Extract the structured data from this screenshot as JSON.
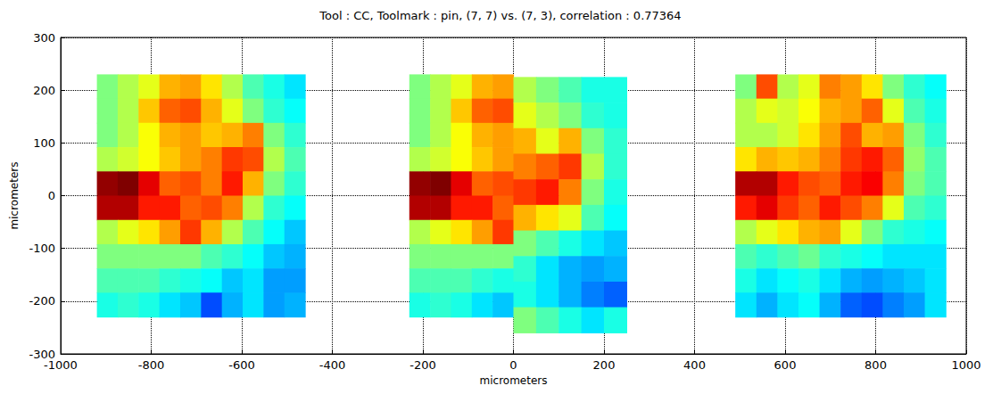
{
  "chart_data": {
    "type": "heatmap",
    "title": "Tool : CC, Toolmark : pin, (7, 7) vs. (7, 3), correlation : 0.77364",
    "x_label": "micrometers",
    "y_label": "micrometers",
    "xlim": [
      -1000,
      1000
    ],
    "xticks": [
      -1000,
      -800,
      -600,
      -400,
      -200,
      0,
      200,
      400,
      600,
      800,
      1000
    ],
    "ylim": [
      -300,
      300
    ],
    "yticks": [
      -300,
      -200,
      -100,
      0,
      100,
      200,
      300
    ],
    "grid": true,
    "color_range": [
      0,
      1
    ],
    "colors": [
      "#00007f",
      "#0000ff",
      "#007fff",
      "#00ffff",
      "#7fff7f",
      "#ffff00",
      "#ff7f00",
      "#ff0000",
      "#7f0000"
    ],
    "images": [
      {
        "x_range": [
          -920,
          -460
        ],
        "y_range": [
          -230,
          230
        ],
        "cells": [
          [
            0.5,
            0.55,
            0.6,
            0.7,
            0.72,
            0.65,
            0.55,
            0.45,
            0.4,
            0.35
          ],
          [
            0.5,
            0.55,
            0.68,
            0.78,
            0.8,
            0.7,
            0.6,
            0.5,
            0.42,
            0.38
          ],
          [
            0.5,
            0.55,
            0.62,
            0.7,
            0.72,
            0.68,
            0.7,
            0.75,
            0.5,
            0.42
          ],
          [
            0.55,
            0.58,
            0.62,
            0.68,
            0.72,
            0.75,
            0.82,
            0.8,
            0.55,
            0.45
          ],
          [
            0.98,
            1.0,
            0.9,
            0.78,
            0.8,
            0.75,
            0.85,
            0.7,
            0.5,
            0.42
          ],
          [
            0.95,
            0.95,
            0.85,
            0.85,
            0.78,
            0.8,
            0.75,
            0.55,
            0.42,
            0.38
          ],
          [
            0.55,
            0.6,
            0.65,
            0.72,
            0.82,
            0.7,
            0.55,
            0.45,
            0.38,
            0.32
          ],
          [
            0.5,
            0.5,
            0.5,
            0.5,
            0.5,
            0.45,
            0.42,
            0.38,
            0.32,
            0.3
          ],
          [
            0.45,
            0.45,
            0.45,
            0.42,
            0.4,
            0.38,
            0.32,
            0.35,
            0.28,
            0.28
          ],
          [
            0.4,
            0.42,
            0.4,
            0.35,
            0.32,
            0.2,
            0.3,
            0.35,
            0.28,
            0.3
          ]
        ]
      },
      {
        "x_range": [
          -230,
          0
        ],
        "y_range": [
          -230,
          230
        ],
        "cells": [
          [
            0.5,
            0.55,
            0.6,
            0.7,
            0.72
          ],
          [
            0.5,
            0.55,
            0.68,
            0.78,
            0.8
          ],
          [
            0.5,
            0.55,
            0.62,
            0.7,
            0.72
          ],
          [
            0.55,
            0.58,
            0.62,
            0.68,
            0.72
          ],
          [
            0.98,
            1.0,
            0.9,
            0.78,
            0.8
          ],
          [
            0.95,
            0.95,
            0.85,
            0.85,
            0.78
          ],
          [
            0.55,
            0.6,
            0.65,
            0.72,
            0.82
          ],
          [
            0.5,
            0.5,
            0.5,
            0.5,
            0.5
          ],
          [
            0.45,
            0.45,
            0.45,
            0.42,
            0.4
          ],
          [
            0.4,
            0.42,
            0.4,
            0.35,
            0.32
          ]
        ]
      },
      {
        "x_range": [
          0,
          250
        ],
        "y_range": [
          -260,
          225
        ],
        "cells": [
          [
            0.55,
            0.5,
            0.45,
            0.4,
            0.4
          ],
          [
            0.6,
            0.55,
            0.5,
            0.42,
            0.4
          ],
          [
            0.7,
            0.6,
            0.7,
            0.5,
            0.42
          ],
          [
            0.75,
            0.78,
            0.82,
            0.55,
            0.42
          ],
          [
            0.82,
            0.85,
            0.75,
            0.5,
            0.4
          ],
          [
            0.7,
            0.65,
            0.6,
            0.45,
            0.38
          ],
          [
            0.5,
            0.45,
            0.4,
            0.35,
            0.32
          ],
          [
            0.42,
            0.35,
            0.3,
            0.28,
            0.3
          ],
          [
            0.4,
            0.35,
            0.3,
            0.25,
            0.22
          ],
          [
            0.5,
            0.45,
            0.4,
            0.35,
            0.4
          ]
        ]
      },
      {
        "x_range": [
          490,
          955
        ],
        "y_range": [
          -230,
          230
        ],
        "cells": [
          [
            0.5,
            0.8,
            0.55,
            0.6,
            0.75,
            0.72,
            0.65,
            0.5,
            0.42,
            0.38
          ],
          [
            0.55,
            0.6,
            0.58,
            0.62,
            0.7,
            0.72,
            0.78,
            0.6,
            0.45,
            0.4
          ],
          [
            0.55,
            0.55,
            0.58,
            0.65,
            0.72,
            0.8,
            0.7,
            0.72,
            0.5,
            0.42
          ],
          [
            0.65,
            0.7,
            0.68,
            0.7,
            0.75,
            0.82,
            0.85,
            0.78,
            0.52,
            0.45
          ],
          [
            0.95,
            0.95,
            0.85,
            0.8,
            0.78,
            0.85,
            0.88,
            0.75,
            0.5,
            0.45
          ],
          [
            0.85,
            0.9,
            0.82,
            0.78,
            0.85,
            0.8,
            0.75,
            0.6,
            0.45,
            0.42
          ],
          [
            0.55,
            0.6,
            0.65,
            0.7,
            0.72,
            0.6,
            0.5,
            0.42,
            0.4,
            0.38
          ],
          [
            0.45,
            0.42,
            0.45,
            0.48,
            0.42,
            0.4,
            0.38,
            0.35,
            0.35,
            0.35
          ],
          [
            0.4,
            0.35,
            0.38,
            0.4,
            0.35,
            0.3,
            0.28,
            0.3,
            0.32,
            0.35
          ],
          [
            0.35,
            0.3,
            0.35,
            0.38,
            0.3,
            0.22,
            0.2,
            0.25,
            0.28,
            0.35
          ]
        ]
      }
    ]
  }
}
